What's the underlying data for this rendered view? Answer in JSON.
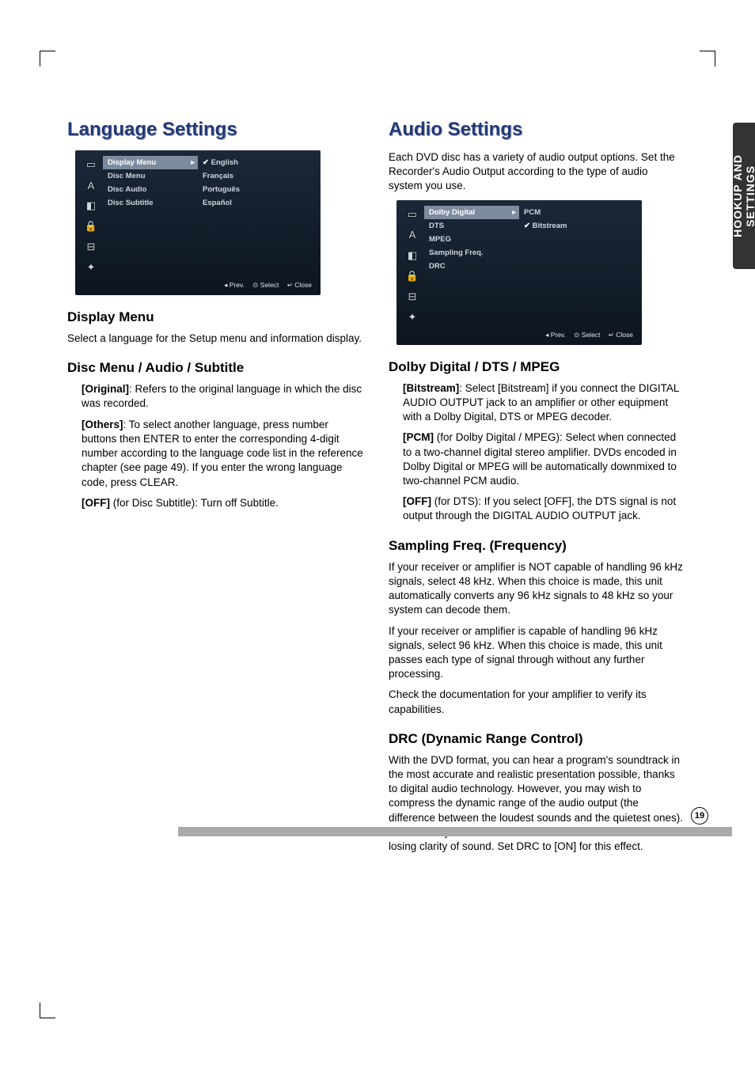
{
  "sideTab": "HOOKUP AND\nSETTINGS",
  "pageNumber": "19",
  "left": {
    "heading": "Language Settings",
    "menu": {
      "midItems": [
        "Display Menu",
        "Disc Menu",
        "Disc Audio",
        "Disc Subtitle"
      ],
      "midActiveIndex": 0,
      "rightItems": [
        "English",
        "Français",
        "Português",
        "Español"
      ],
      "rightSelectedIndex": 0,
      "footerPrev": "◂ Prev.",
      "footerSelect": "⊙ Select",
      "footerClose": "↵ Close"
    },
    "displayMenuTitle": "Display Menu",
    "displayMenuText": "Select a language for the Setup menu and information display.",
    "discTitle": "Disc Menu / Audio / Subtitle",
    "originalLabel": "[Original]",
    "originalText": ": Refers to the original language in which the disc was recorded.",
    "othersLabel": "[Others]",
    "othersText": ": To select another language, press number buttons then ENTER to enter the corresponding 4-digit number according to the language code list in the reference chapter (see page 49). If you enter the wrong language code, press CLEAR.",
    "offLabel": "[OFF]",
    "offText": " (for Disc Subtitle): Turn off Subtitle."
  },
  "right": {
    "heading": "Audio Settings",
    "intro": "Each DVD disc has a variety of audio output options. Set the Recorder's Audio Output according to the type of audio system you use.",
    "menu": {
      "midItems": [
        "Dolby Digital",
        "DTS",
        "MPEG",
        "Sampling Freq.",
        "DRC"
      ],
      "midActiveIndex": 0,
      "rightItems": [
        "PCM",
        "Bitstream"
      ],
      "rightSelectedIndex": 1,
      "footerPrev": "◂ Prev.",
      "footerSelect": "⊙ Select",
      "footerClose": "↵ Close"
    },
    "dolbyTitle": "Dolby Digital / DTS / MPEG",
    "bitstreamLabel": "[Bitstream]",
    "bitstreamText": ": Select [Bitstream] if you connect the DIGITAL AUDIO OUTPUT jack to an amplifier or other equipment with a Dolby Digital, DTS or MPEG decoder.",
    "pcmLabel": "[PCM]",
    "pcmText": " (for Dolby Digital / MPEG): Select when connected to a two-channel digital stereo amplifier. DVDs encoded in Dolby Digital or MPEG will be automatically downmixed to two-channel PCM audio.",
    "dtsOffLabel": "[OFF]",
    "dtsOffText": " (for DTS): If you select [OFF], the DTS signal is not output through the DIGITAL AUDIO OUTPUT jack.",
    "sampTitle": "Sampling Freq. (Frequency)",
    "sampP1": "If your receiver or amplifier is NOT capable of handling 96 kHz signals, select 48 kHz. When this choice is made, this unit automatically converts any 96 kHz signals to 48 kHz so your system can decode them.",
    "sampP2": "If your receiver or amplifier is capable of handling 96 kHz signals, select 96 kHz. When this choice is made, this unit passes each type of signal through without any further processing.",
    "sampP3": "Check the documentation for your amplifier to verify its capabilities.",
    "drcTitle": "DRC (Dynamic Range Control)",
    "drcText": "With the DVD format, you can hear a program's soundtrack in the most accurate and realistic presentation possible, thanks to digital audio technology. However, you may wish to compress the dynamic range of the audio output (the difference between the loudest sounds and the quietest ones). This allows you to listen to a movie at a lower volume without losing clarity of sound. Set DRC to [ON] for this effect."
  },
  "icons": [
    "▭",
    "A",
    "◧",
    "🔒",
    "⊟",
    "✦"
  ]
}
